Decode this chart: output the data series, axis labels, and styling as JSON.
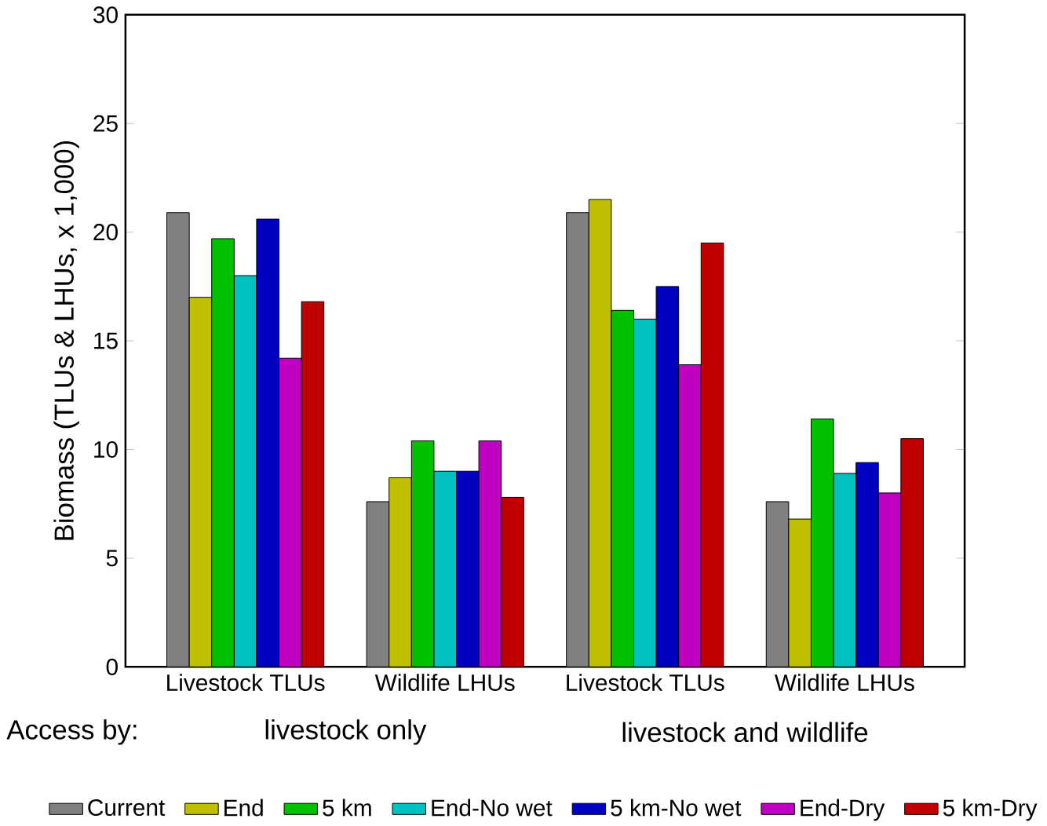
{
  "chart_data": {
    "type": "bar",
    "ylabel": "Biomass  (TLUs & LHUs, x 1,000)",
    "categories": [
      "Livestock TLUs",
      "Wildlife LHUs",
      "Livestock TLUs",
      "Wildlife LHUs"
    ],
    "series": [
      {
        "name": "Current",
        "color": "#808080",
        "values": [
          20.9,
          7.6,
          20.9,
          7.6
        ]
      },
      {
        "name": "End",
        "color": "#c0c000",
        "values": [
          17.0,
          8.7,
          21.5,
          6.8
        ]
      },
      {
        "name": "5 km",
        "color": "#00c000",
        "values": [
          19.7,
          10.4,
          16.4,
          11.4
        ]
      },
      {
        "name": "End-No wet",
        "color": "#00c0c0",
        "values": [
          18.0,
          9.0,
          16.0,
          8.9
        ]
      },
      {
        "name": "5 km-No wet",
        "color": "#0000c0",
        "values": [
          20.6,
          9.0,
          17.5,
          9.4
        ]
      },
      {
        "name": "End-Dry",
        "color": "#c000c0",
        "values": [
          14.2,
          10.4,
          13.9,
          8.0
        ]
      },
      {
        "name": "5 km-Dry",
        "color": "#c00000",
        "values": [
          16.8,
          7.8,
          19.5,
          10.5
        ]
      }
    ],
    "ylim": [
      0,
      30
    ],
    "yticks": [
      0,
      5,
      10,
      15,
      20,
      25,
      30
    ],
    "annotations": [
      "Access by:",
      "livestock only",
      "livestock and wildlife"
    ],
    "legend": "bottom",
    "grid": false
  }
}
